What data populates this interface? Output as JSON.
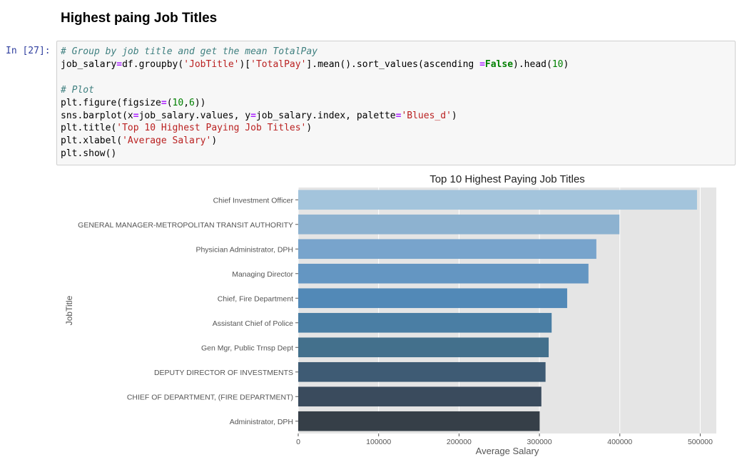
{
  "section": {
    "heading": "Highest paing Job Titles"
  },
  "cell": {
    "prompt": "In [27]:",
    "lines": [
      [
        {
          "t": "# Group by job title and get the mean TotalPay",
          "c": "cm"
        }
      ],
      [
        {
          "t": "job_salary"
        },
        {
          "t": "=",
          "c": "op"
        },
        {
          "t": "df.groupby("
        },
        {
          "t": "'JobTitle'",
          "c": "st"
        },
        {
          "t": ")["
        },
        {
          "t": "'TotalPay'",
          "c": "st"
        },
        {
          "t": "].mean().sort_values(ascending "
        },
        {
          "t": "=",
          "c": "op"
        },
        {
          "t": "False",
          "c": "kw"
        },
        {
          "t": ").head("
        },
        {
          "t": "10",
          "c": "nu"
        },
        {
          "t": ")"
        }
      ],
      [
        {
          "t": ""
        }
      ],
      [
        {
          "t": "# Plot",
          "c": "cm"
        }
      ],
      [
        {
          "t": "plt.figure(figsize"
        },
        {
          "t": "=",
          "c": "op"
        },
        {
          "t": "("
        },
        {
          "t": "10",
          "c": "nu"
        },
        {
          "t": ","
        },
        {
          "t": "6",
          "c": "nu"
        },
        {
          "t": "))"
        }
      ],
      [
        {
          "t": "sns.barplot(x"
        },
        {
          "t": "=",
          "c": "op"
        },
        {
          "t": "job_salary.values, y"
        },
        {
          "t": "=",
          "c": "op"
        },
        {
          "t": "job_salary.index, palette"
        },
        {
          "t": "=",
          "c": "op"
        },
        {
          "t": "'Blues_d'",
          "c": "st"
        },
        {
          "t": ")"
        }
      ],
      [
        {
          "t": "plt.title("
        },
        {
          "t": "'Top 10 Highest Paying Job Titles'",
          "c": "st"
        },
        {
          "t": ")"
        }
      ],
      [
        {
          "t": "plt.xlabel("
        },
        {
          "t": "'Average Salary'",
          "c": "st"
        },
        {
          "t": ")"
        }
      ],
      [
        {
          "t": "plt.show()"
        }
      ]
    ]
  },
  "chart_data": {
    "type": "bar",
    "orientation": "horizontal",
    "title": "Top 10 Highest Paying Job Titles",
    "xlabel": "Average Salary",
    "ylabel": "JobTitle",
    "categories": [
      "Chief Investment Officer",
      "GENERAL MANAGER-METROPOLITAN TRANSIT AUTHORITY",
      "Physician Administrator, DPH",
      "Managing Director",
      "Chief, Fire Department",
      "Assistant Chief of Police",
      "Gen Mgr, Public Trnsp Dept",
      "DEPUTY DIRECTOR OF INVESTMENTS",
      "CHIEF OF DEPARTMENT, (FIRE DEPARTMENT)",
      "Administrator, DPH"
    ],
    "values": [
      496000,
      399500,
      370800,
      361000,
      334500,
      315200,
      311500,
      307600,
      302400,
      300300
    ],
    "xlim": [
      0,
      520000
    ],
    "xticks": [
      0,
      100000,
      200000,
      300000,
      400000,
      500000
    ],
    "xtick_labels": [
      "0",
      "100000",
      "200000",
      "300000",
      "400000",
      "500000"
    ],
    "colors": [
      "#a3c4dc",
      "#8db2d0",
      "#78a4cc",
      "#6496c2",
      "#5289b7",
      "#4a7ea4",
      "#43708c",
      "#3e5b74",
      "#3a4b5d",
      "#363f48"
    ],
    "plot_background": "#e5e5e5",
    "grid": true
  }
}
